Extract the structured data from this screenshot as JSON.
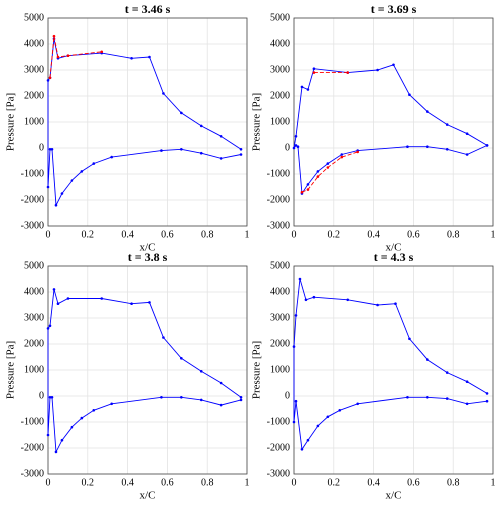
{
  "chart_data": [
    {
      "type": "line",
      "title": "t = 3.46 s",
      "xlabel": "x/C",
      "ylabel": "Pressure [Pa]",
      "xlim": [
        0,
        1
      ],
      "ylim": [
        -3000,
        5000
      ],
      "xticks": [
        0,
        0.2,
        0.4,
        0.6,
        0.8,
        1
      ],
      "yticks": [
        -3000,
        -2000,
        -1000,
        0,
        1000,
        2000,
        3000,
        4000,
        5000
      ],
      "grid": true,
      "series": [
        {
          "color": "#0000ff",
          "dashed": false,
          "x": [
            0.97,
            0.87,
            0.77,
            0.67,
            0.58,
            0.51,
            0.42,
            0.27,
            0.1,
            0.05,
            0.03,
            0.01,
            0,
            0,
            0.01,
            0.02,
            0.04,
            0.07,
            0.12,
            0.17,
            0.23,
            0.32,
            0.57,
            0.67,
            0.77,
            0.87,
            0.97
          ],
          "values": [
            -50,
            450,
            850,
            1350,
            2100,
            3500,
            3450,
            3650,
            3550,
            3450,
            4200,
            2700,
            2600,
            -1500,
            -50,
            -50,
            -2200,
            -1750,
            -1250,
            -900,
            -600,
            -350,
            -100,
            -50,
            -200,
            -400,
            -250
          ]
        },
        {
          "color": "#ff0000",
          "dashed": true,
          "x": [
            0.01,
            0.03,
            0.05,
            0.1,
            0.27
          ],
          "values": [
            2700,
            4300,
            3500,
            3550,
            3700
          ]
        }
      ]
    },
    {
      "type": "line",
      "title": "t = 3.69 s",
      "xlabel": "x/C",
      "ylabel": "Pressure [Pa]",
      "xlim": [
        0,
        1
      ],
      "ylim": [
        -3000,
        5000
      ],
      "xticks": [
        0,
        0.2,
        0.4,
        0.6,
        0.8,
        1
      ],
      "yticks": [
        -3000,
        -2000,
        -1000,
        0,
        1000,
        2000,
        3000,
        4000,
        5000
      ],
      "grid": true,
      "series": [
        {
          "color": "#0000ff",
          "dashed": false,
          "x": [
            0.97,
            0.87,
            0.77,
            0.67,
            0.58,
            0.5,
            0.42,
            0.27,
            0.1,
            0.07,
            0.04,
            0.01,
            0,
            0.01,
            0.02,
            0.04,
            0.07,
            0.12,
            0.17,
            0.24,
            0.32,
            0.57,
            0.67,
            0.77,
            0.87,
            0.97
          ],
          "values": [
            100,
            550,
            900,
            1400,
            2050,
            3200,
            3000,
            2900,
            3050,
            2250,
            2350,
            450,
            0,
            100,
            50,
            -1750,
            -1400,
            -900,
            -600,
            -250,
            -100,
            50,
            50,
            -50,
            -250,
            100
          ]
        },
        {
          "color": "#ff0000",
          "dashed": true,
          "x": [
            0.1,
            0.27
          ],
          "values": [
            2900,
            2900
          ]
        },
        {
          "color": "#ff0000",
          "dashed": true,
          "x": [
            0.04,
            0.07,
            0.12,
            0.17,
            0.24,
            0.32
          ],
          "values": [
            -1700,
            -1600,
            -1100,
            -750,
            -350,
            -150
          ]
        }
      ]
    },
    {
      "type": "line",
      "title": "t = 3.8 s",
      "xlabel": "x/C",
      "ylabel": "Pressure [Pa]",
      "xlim": [
        0,
        1
      ],
      "ylim": [
        -3000,
        5000
      ],
      "xticks": [
        0,
        0.2,
        0.4,
        0.6,
        0.8,
        1
      ],
      "yticks": [
        -3000,
        -2000,
        -1000,
        0,
        1000,
        2000,
        3000,
        4000,
        5000
      ],
      "grid": true,
      "series": [
        {
          "color": "#0000ff",
          "dashed": false,
          "x": [
            0.97,
            0.87,
            0.77,
            0.67,
            0.58,
            0.51,
            0.42,
            0.27,
            0.1,
            0.05,
            0.03,
            0.01,
            0,
            0,
            0.01,
            0.02,
            0.04,
            0.07,
            0.12,
            0.17,
            0.23,
            0.32,
            0.57,
            0.67,
            0.77,
            0.87,
            0.97
          ],
          "values": [
            -50,
            500,
            950,
            1450,
            2250,
            3600,
            3550,
            3750,
            3750,
            3550,
            4100,
            2700,
            2600,
            -1500,
            -50,
            -50,
            -2150,
            -1700,
            -1200,
            -850,
            -550,
            -300,
            -50,
            -50,
            -150,
            -350,
            -150
          ]
        }
      ]
    },
    {
      "type": "line",
      "title": "t = 4.3 s",
      "xlabel": "x/C",
      "ylabel": "Pressure [Pa]",
      "xlim": [
        0,
        1
      ],
      "ylim": [
        -3000,
        5000
      ],
      "xticks": [
        0,
        0.2,
        0.4,
        0.6,
        0.8,
        1
      ],
      "yticks": [
        -3000,
        -2000,
        -1000,
        0,
        1000,
        2000,
        3000,
        4000,
        5000
      ],
      "grid": true,
      "series": [
        {
          "color": "#0000ff",
          "dashed": false,
          "x": [
            0.97,
            0.87,
            0.77,
            0.67,
            0.58,
            0.51,
            0.42,
            0.27,
            0.1,
            0.06,
            0.03,
            0.01,
            0,
            0,
            0.01,
            0.04,
            0.07,
            0.12,
            0.17,
            0.23,
            0.32,
            0.57,
            0.67,
            0.77,
            0.87,
            0.97
          ],
          "values": [
            100,
            550,
            900,
            1400,
            2200,
            3550,
            3500,
            3700,
            3800,
            3700,
            4500,
            3100,
            1900,
            -1000,
            -200,
            -2050,
            -1700,
            -1150,
            -800,
            -550,
            -300,
            -50,
            -50,
            -100,
            -300,
            -200
          ]
        }
      ]
    }
  ]
}
